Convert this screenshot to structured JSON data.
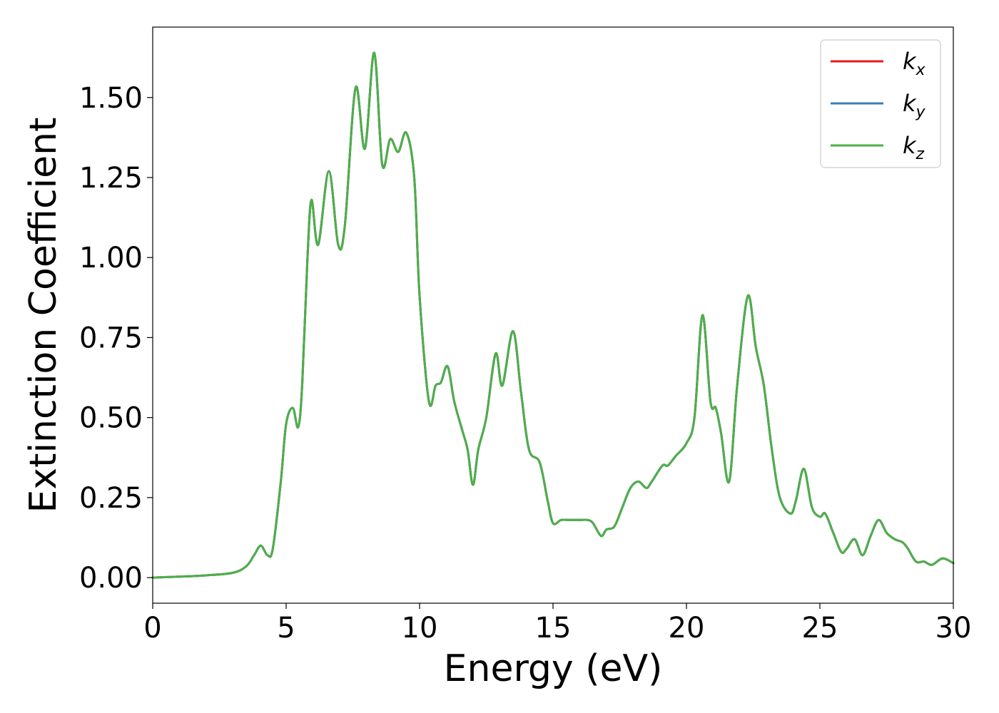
{
  "chart_data": {
    "type": "line",
    "xlabel": "Energy (eV)",
    "ylabel": "Extinction Coefficient",
    "xlim": [
      0,
      30
    ],
    "ylim": [
      -0.08,
      1.72
    ],
    "xticks": [
      0,
      5,
      10,
      15,
      20,
      25,
      30
    ],
    "xtick_labels": [
      "0",
      "5",
      "10",
      "15",
      "20",
      "25",
      "30"
    ],
    "yticks": [
      0.0,
      0.25,
      0.5,
      0.75,
      1.0,
      1.25,
      1.5
    ],
    "ytick_labels": [
      "0.00",
      "0.25",
      "0.50",
      "0.75",
      "1.00",
      "1.25",
      "1.50"
    ],
    "grid": false,
    "legend_position": "top-right",
    "x": [
      0,
      1,
      2,
      3,
      3.5,
      3.8,
      4.05,
      4.3,
      4.5,
      4.8,
      5.0,
      5.25,
      5.45,
      5.6,
      5.8,
      5.95,
      6.2,
      6.6,
      6.95,
      7.2,
      7.6,
      7.95,
      8.3,
      8.6,
      8.9,
      9.2,
      9.5,
      9.8,
      10.0,
      10.35,
      10.6,
      10.8,
      11.05,
      11.3,
      11.6,
      11.8,
      12.0,
      12.2,
      12.5,
      12.85,
      13.1,
      13.5,
      13.8,
      14.1,
      14.5,
      14.8,
      15.0,
      15.3,
      15.6,
      16.0,
      16.3,
      16.5,
      16.8,
      17.0,
      17.3,
      17.6,
      17.9,
      18.2,
      18.5,
      18.7,
      19.1,
      19.3,
      19.6,
      20.0,
      20.3,
      20.6,
      20.9,
      21.1,
      21.3,
      21.6,
      21.9,
      22.3,
      22.6,
      22.9,
      23.2,
      23.5,
      23.9,
      24.1,
      24.4,
      24.7,
      25.0,
      25.2,
      25.5,
      25.8,
      26.0,
      26.3,
      26.6,
      26.9,
      27.2,
      27.5,
      27.8,
      28.1,
      28.3,
      28.6,
      28.9,
      29.2,
      29.6,
      30.0
    ],
    "series": [
      {
        "name": "k_x",
        "label_main": "k",
        "label_sub": "x",
        "color": "#e41a1c",
        "values": [
          0.0,
          0.003,
          0.007,
          0.015,
          0.035,
          0.07,
          0.1,
          0.07,
          0.09,
          0.3,
          0.48,
          0.53,
          0.47,
          0.6,
          1.0,
          1.18,
          1.04,
          1.27,
          1.04,
          1.1,
          1.53,
          1.34,
          1.64,
          1.29,
          1.37,
          1.33,
          1.39,
          1.25,
          0.88,
          0.55,
          0.6,
          0.61,
          0.66,
          0.55,
          0.46,
          0.4,
          0.29,
          0.4,
          0.5,
          0.7,
          0.6,
          0.77,
          0.58,
          0.4,
          0.36,
          0.24,
          0.17,
          0.18,
          0.18,
          0.18,
          0.18,
          0.17,
          0.13,
          0.15,
          0.16,
          0.22,
          0.28,
          0.3,
          0.28,
          0.3,
          0.35,
          0.35,
          0.38,
          0.42,
          0.5,
          0.82,
          0.55,
          0.53,
          0.45,
          0.3,
          0.6,
          0.88,
          0.72,
          0.6,
          0.4,
          0.25,
          0.2,
          0.24,
          0.34,
          0.22,
          0.19,
          0.2,
          0.14,
          0.08,
          0.09,
          0.12,
          0.07,
          0.13,
          0.18,
          0.14,
          0.12,
          0.11,
          0.09,
          0.05,
          0.05,
          0.04,
          0.06,
          0.045
        ]
      },
      {
        "name": "k_y",
        "label_main": "k",
        "label_sub": "y",
        "color": "#377eb8",
        "values": [
          0.0,
          0.003,
          0.007,
          0.015,
          0.035,
          0.07,
          0.1,
          0.07,
          0.09,
          0.3,
          0.48,
          0.53,
          0.47,
          0.6,
          1.0,
          1.18,
          1.04,
          1.27,
          1.04,
          1.1,
          1.53,
          1.34,
          1.64,
          1.29,
          1.37,
          1.33,
          1.39,
          1.25,
          0.88,
          0.55,
          0.6,
          0.61,
          0.66,
          0.55,
          0.46,
          0.4,
          0.29,
          0.4,
          0.5,
          0.7,
          0.6,
          0.77,
          0.58,
          0.4,
          0.36,
          0.24,
          0.17,
          0.18,
          0.18,
          0.18,
          0.18,
          0.17,
          0.13,
          0.15,
          0.16,
          0.22,
          0.28,
          0.3,
          0.28,
          0.3,
          0.35,
          0.35,
          0.38,
          0.42,
          0.5,
          0.82,
          0.55,
          0.53,
          0.45,
          0.3,
          0.6,
          0.88,
          0.72,
          0.6,
          0.4,
          0.25,
          0.2,
          0.24,
          0.34,
          0.22,
          0.19,
          0.2,
          0.14,
          0.08,
          0.09,
          0.12,
          0.07,
          0.13,
          0.18,
          0.14,
          0.12,
          0.11,
          0.09,
          0.05,
          0.05,
          0.04,
          0.06,
          0.045
        ]
      },
      {
        "name": "k_z",
        "label_main": "k",
        "label_sub": "z",
        "color": "#4daf4a",
        "values": [
          0.0,
          0.003,
          0.007,
          0.015,
          0.035,
          0.07,
          0.1,
          0.07,
          0.09,
          0.3,
          0.48,
          0.53,
          0.47,
          0.6,
          1.0,
          1.18,
          1.04,
          1.27,
          1.04,
          1.1,
          1.53,
          1.34,
          1.64,
          1.29,
          1.37,
          1.33,
          1.39,
          1.25,
          0.88,
          0.55,
          0.6,
          0.61,
          0.66,
          0.55,
          0.46,
          0.4,
          0.29,
          0.4,
          0.5,
          0.7,
          0.6,
          0.77,
          0.58,
          0.4,
          0.36,
          0.24,
          0.17,
          0.18,
          0.18,
          0.18,
          0.18,
          0.17,
          0.13,
          0.15,
          0.16,
          0.22,
          0.28,
          0.3,
          0.28,
          0.3,
          0.35,
          0.35,
          0.38,
          0.42,
          0.5,
          0.82,
          0.55,
          0.53,
          0.45,
          0.3,
          0.6,
          0.88,
          0.72,
          0.6,
          0.4,
          0.25,
          0.2,
          0.24,
          0.34,
          0.22,
          0.19,
          0.2,
          0.14,
          0.08,
          0.09,
          0.12,
          0.07,
          0.13,
          0.18,
          0.14,
          0.12,
          0.11,
          0.09,
          0.05,
          0.05,
          0.04,
          0.06,
          0.045
        ]
      }
    ]
  }
}
